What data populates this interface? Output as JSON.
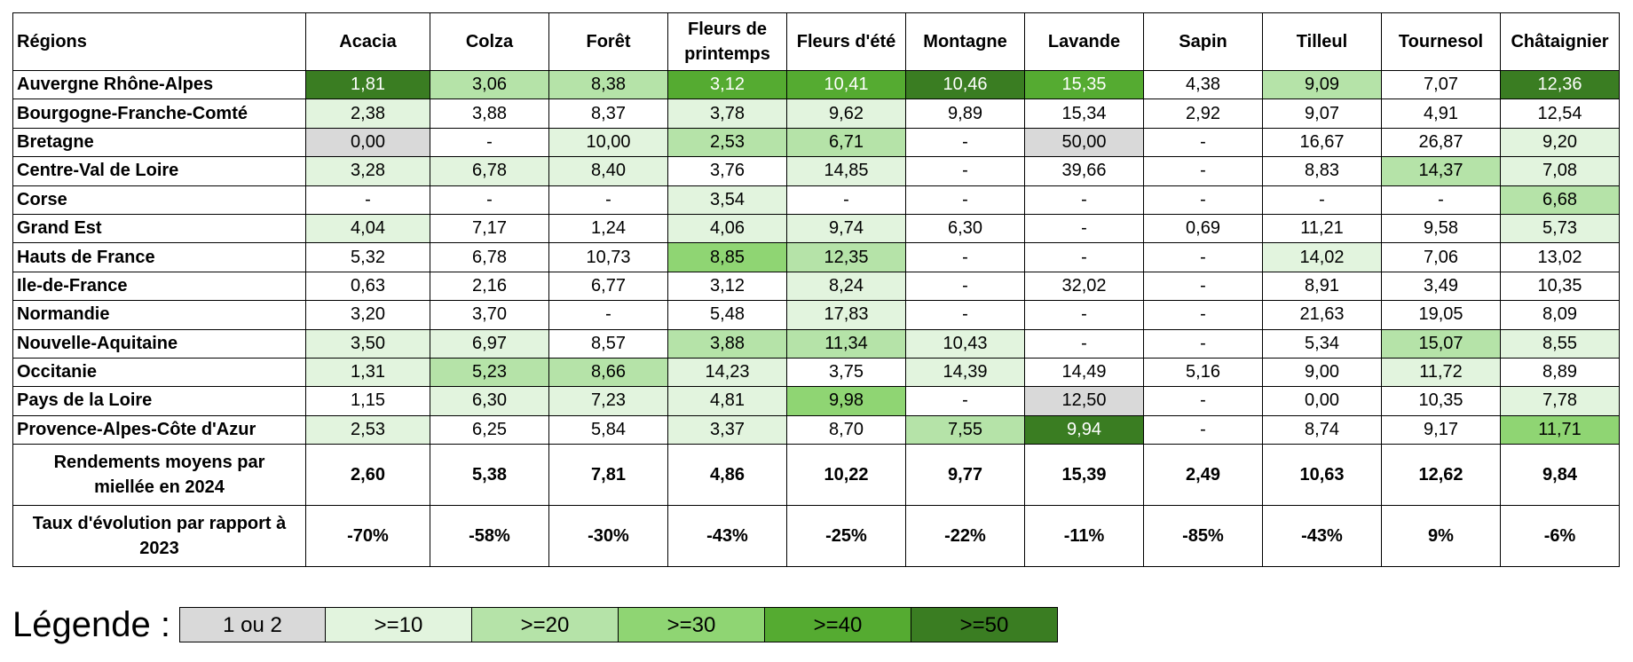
{
  "table": {
    "headers": [
      "Régions",
      "Acacia",
      "Colza",
      "Forêt",
      "Fleurs de printemps",
      "Fleurs d'été",
      "Montagne",
      "Lavande",
      "Sapin",
      "Tilleul",
      "Tournesol",
      "Châtaignier"
    ],
    "rows": [
      {
        "region": "Auvergne Rhône-Alpes",
        "cells": [
          {
            "v": "1,81",
            "c": 6
          },
          {
            "v": "3,06",
            "c": 3
          },
          {
            "v": "8,38",
            "c": 3
          },
          {
            "v": "3,12",
            "c": 5
          },
          {
            "v": "10,41",
            "c": 5
          },
          {
            "v": "10,46",
            "c": 6
          },
          {
            "v": "15,35",
            "c": 5
          },
          {
            "v": "4,38",
            "c": 0
          },
          {
            "v": "9,09",
            "c": 3
          },
          {
            "v": "7,07",
            "c": 0
          },
          {
            "v": "12,36",
            "c": 6
          }
        ]
      },
      {
        "region": "Bourgogne-Franche-Comté",
        "cells": [
          {
            "v": "2,38",
            "c": 2
          },
          {
            "v": "3,88",
            "c": 0
          },
          {
            "v": "8,37",
            "c": 0
          },
          {
            "v": "3,78",
            "c": 2
          },
          {
            "v": "9,62",
            "c": 2
          },
          {
            "v": "9,89",
            "c": 0
          },
          {
            "v": "15,34",
            "c": 0
          },
          {
            "v": "2,92",
            "c": 0
          },
          {
            "v": "9,07",
            "c": 0
          },
          {
            "v": "4,91",
            "c": 0
          },
          {
            "v": "12,54",
            "c": 0
          }
        ]
      },
      {
        "region": "Bretagne",
        "cells": [
          {
            "v": "0,00",
            "c": 1
          },
          {
            "v": "-",
            "c": 0
          },
          {
            "v": "10,00",
            "c": 2
          },
          {
            "v": "2,53",
            "c": 3
          },
          {
            "v": "6,71",
            "c": 3
          },
          {
            "v": "-",
            "c": 0
          },
          {
            "v": "50,00",
            "c": 1
          },
          {
            "v": "-",
            "c": 0
          },
          {
            "v": "16,67",
            "c": 0
          },
          {
            "v": "26,87",
            "c": 0
          },
          {
            "v": "9,20",
            "c": 2
          }
        ]
      },
      {
        "region": "Centre-Val de Loire",
        "cells": [
          {
            "v": "3,28",
            "c": 2
          },
          {
            "v": "6,78",
            "c": 2
          },
          {
            "v": "8,40",
            "c": 2
          },
          {
            "v": "3,76",
            "c": 0
          },
          {
            "v": "14,85",
            "c": 2
          },
          {
            "v": "-",
            "c": 0
          },
          {
            "v": "39,66",
            "c": 0
          },
          {
            "v": "-",
            "c": 0
          },
          {
            "v": "8,83",
            "c": 0
          },
          {
            "v": "14,37",
            "c": 3
          },
          {
            "v": "7,08",
            "c": 2
          }
        ]
      },
      {
        "region": "Corse",
        "cells": [
          {
            "v": "-",
            "c": 0
          },
          {
            "v": "-",
            "c": 0
          },
          {
            "v": "-",
            "c": 0
          },
          {
            "v": "3,54",
            "c": 2
          },
          {
            "v": "-",
            "c": 0
          },
          {
            "v": "-",
            "c": 0
          },
          {
            "v": "-",
            "c": 0
          },
          {
            "v": "-",
            "c": 0
          },
          {
            "v": "-",
            "c": 0
          },
          {
            "v": "-",
            "c": 0
          },
          {
            "v": "6,68",
            "c": 3
          }
        ]
      },
      {
        "region": "Grand Est",
        "cells": [
          {
            "v": "4,04",
            "c": 2
          },
          {
            "v": "7,17",
            "c": 0
          },
          {
            "v": "1,24",
            "c": 0
          },
          {
            "v": "4,06",
            "c": 2
          },
          {
            "v": "9,74",
            "c": 2
          },
          {
            "v": "6,30",
            "c": 0
          },
          {
            "v": "-",
            "c": 0
          },
          {
            "v": "0,69",
            "c": 0
          },
          {
            "v": "11,21",
            "c": 0
          },
          {
            "v": "9,58",
            "c": 0
          },
          {
            "v": "5,73",
            "c": 2
          }
        ]
      },
      {
        "region": "Hauts de France",
        "cells": [
          {
            "v": "5,32",
            "c": 0
          },
          {
            "v": "6,78",
            "c": 0
          },
          {
            "v": "10,73",
            "c": 0
          },
          {
            "v": "8,85",
            "c": 4
          },
          {
            "v": "12,35",
            "c": 3
          },
          {
            "v": "-",
            "c": 0
          },
          {
            "v": "-",
            "c": 0
          },
          {
            "v": "-",
            "c": 0
          },
          {
            "v": "14,02",
            "c": 2
          },
          {
            "v": "7,06",
            "c": 0
          },
          {
            "v": "13,02",
            "c": 0
          }
        ]
      },
      {
        "region": "Ile-de-France",
        "cells": [
          {
            "v": "0,63",
            "c": 0
          },
          {
            "v": "2,16",
            "c": 0
          },
          {
            "v": "6,77",
            "c": 0
          },
          {
            "v": "3,12",
            "c": 0
          },
          {
            "v": "8,24",
            "c": 2
          },
          {
            "v": "-",
            "c": 0
          },
          {
            "v": "32,02",
            "c": 0
          },
          {
            "v": "-",
            "c": 0
          },
          {
            "v": "8,91",
            "c": 0
          },
          {
            "v": "3,49",
            "c": 0
          },
          {
            "v": "10,35",
            "c": 0
          }
        ]
      },
      {
        "region": "Normandie",
        "cells": [
          {
            "v": "3,20",
            "c": 0
          },
          {
            "v": "3,70",
            "c": 0
          },
          {
            "v": "-",
            "c": 0
          },
          {
            "v": "5,48",
            "c": 0
          },
          {
            "v": "17,83",
            "c": 2
          },
          {
            "v": "-",
            "c": 0
          },
          {
            "v": "-",
            "c": 0
          },
          {
            "v": "-",
            "c": 0
          },
          {
            "v": "21,63",
            "c": 0
          },
          {
            "v": "19,05",
            "c": 0
          },
          {
            "v": "8,09",
            "c": 0
          }
        ]
      },
      {
        "region": "Nouvelle-Aquitaine",
        "cells": [
          {
            "v": "3,50",
            "c": 2
          },
          {
            "v": "6,97",
            "c": 2
          },
          {
            "v": "8,57",
            "c": 0
          },
          {
            "v": "3,88",
            "c": 3
          },
          {
            "v": "11,34",
            "c": 3
          },
          {
            "v": "10,43",
            "c": 2
          },
          {
            "v": "-",
            "c": 0
          },
          {
            "v": "-",
            "c": 0
          },
          {
            "v": "5,34",
            "c": 0
          },
          {
            "v": "15,07",
            "c": 3
          },
          {
            "v": "8,55",
            "c": 2
          }
        ]
      },
      {
        "region": "Occitanie",
        "cells": [
          {
            "v": "1,31",
            "c": 2
          },
          {
            "v": "5,23",
            "c": 3
          },
          {
            "v": "8,66",
            "c": 3
          },
          {
            "v": "14,23",
            "c": 2
          },
          {
            "v": "3,75",
            "c": 0
          },
          {
            "v": "14,39",
            "c": 2
          },
          {
            "v": "14,49",
            "c": 0
          },
          {
            "v": "5,16",
            "c": 0
          },
          {
            "v": "9,00",
            "c": 0
          },
          {
            "v": "11,72",
            "c": 2
          },
          {
            "v": "8,89",
            "c": 0
          }
        ]
      },
      {
        "region": "Pays de la Loire",
        "cells": [
          {
            "v": "1,15",
            "c": 0
          },
          {
            "v": "6,30",
            "c": 2
          },
          {
            "v": "7,23",
            "c": 2
          },
          {
            "v": "4,81",
            "c": 2
          },
          {
            "v": "9,98",
            "c": 4
          },
          {
            "v": "-",
            "c": 0
          },
          {
            "v": "12,50",
            "c": 1
          },
          {
            "v": "-",
            "c": 0
          },
          {
            "v": "0,00",
            "c": 0
          },
          {
            "v": "10,35",
            "c": 0
          },
          {
            "v": "7,78",
            "c": 2
          }
        ]
      },
      {
        "region": "Provence-Alpes-Côte d'Azur",
        "cells": [
          {
            "v": "2,53",
            "c": 2
          },
          {
            "v": "6,25",
            "c": 0
          },
          {
            "v": "5,84",
            "c": 0
          },
          {
            "v": "3,37",
            "c": 2
          },
          {
            "v": "8,70",
            "c": 0
          },
          {
            "v": "7,55",
            "c": 3
          },
          {
            "v": "9,94",
            "c": 6
          },
          {
            "v": "-",
            "c": 0
          },
          {
            "v": "8,74",
            "c": 0
          },
          {
            "v": "9,17",
            "c": 0
          },
          {
            "v": "11,71",
            "c": 4
          }
        ]
      }
    ],
    "summary": [
      {
        "label": "Rendements moyens par miellée en 2024",
        "values": [
          "2,60",
          "5,38",
          "7,81",
          "4,86",
          "10,22",
          "9,77",
          "15,39",
          "2,49",
          "10,63",
          "12,62",
          "9,84"
        ]
      },
      {
        "label": "Taux d'évolution par rapport à 2023",
        "values": [
          "-70%",
          "-58%",
          "-30%",
          "-43%",
          "-25%",
          "-22%",
          "-11%",
          "-85%",
          "-43%",
          "9%",
          "-6%"
        ]
      }
    ]
  },
  "legend": {
    "title": "Légende :",
    "items": [
      {
        "label": "1 ou 2",
        "color": "#d9d9d9"
      },
      {
        "label": ">=10",
        "color": "#e2f4de"
      },
      {
        "label": ">=20",
        "color": "#b5e3a8"
      },
      {
        "label": ">=30",
        "color": "#8fd573"
      },
      {
        "label": ">=40",
        "color": "#55ab31"
      },
      {
        "label": ">=50",
        "color": "#3a7d22"
      }
    ]
  }
}
